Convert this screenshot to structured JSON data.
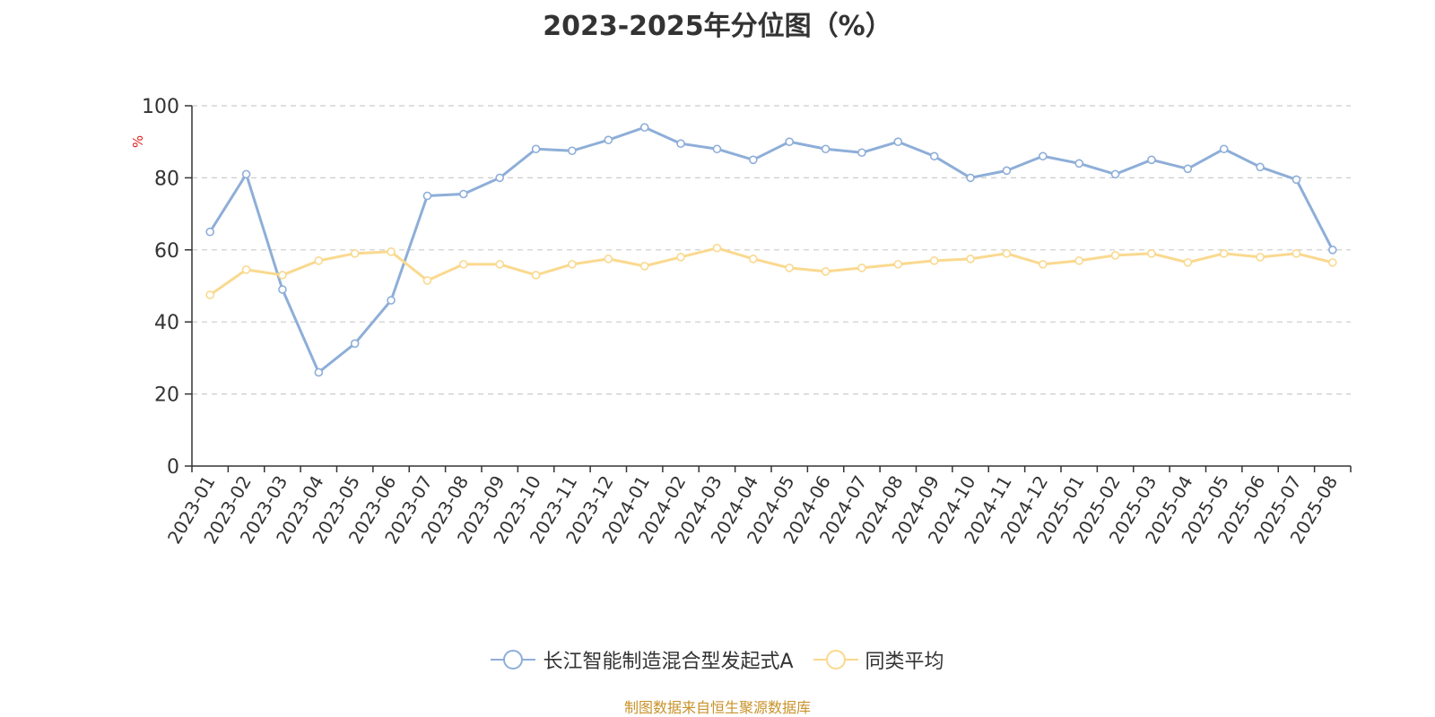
{
  "colors": {
    "fund": "#8eaed8",
    "average": "#fad98f",
    "ylabel": "#e02020",
    "source": "#c8922a",
    "axis": "#333333",
    "grid": "#cccccc"
  },
  "chart_data": {
    "type": "line",
    "title": "2023-2025年分位图（%）",
    "xlabel": "",
    "ylabel": "%",
    "ylim": [
      0,
      100
    ],
    "yticks": [
      0,
      20,
      40,
      60,
      80,
      100
    ],
    "grid": "horizontal dashed",
    "legend_position": "bottom",
    "categories": [
      "2023-01",
      "2023-02",
      "2023-03",
      "2023-04",
      "2023-05",
      "2023-06",
      "2023-07",
      "2023-08",
      "2023-09",
      "2023-10",
      "2023-11",
      "2023-12",
      "2024-01",
      "2024-02",
      "2024-03",
      "2024-04",
      "2024-05",
      "2024-06",
      "2024-07",
      "2024-08",
      "2024-09",
      "2024-10",
      "2024-11",
      "2024-12",
      "2025-01",
      "2025-02",
      "2025-03",
      "2025-04",
      "2025-05",
      "2025-06",
      "2025-07",
      "2025-08"
    ],
    "series": [
      {
        "name": "长江智能制造混合型发起式A",
        "values": [
          65,
          81,
          49,
          26,
          34,
          46,
          75,
          75.5,
          80,
          88,
          87.5,
          90.5,
          94,
          89.5,
          88,
          85,
          90,
          88,
          87,
          90,
          86,
          80,
          82,
          86,
          84,
          81,
          85,
          82.5,
          88,
          83,
          79.5,
          60
        ]
      },
      {
        "name": "同类平均",
        "values": [
          47.5,
          54.5,
          53,
          57,
          59,
          59.5,
          51.5,
          56,
          56,
          53,
          56,
          57.5,
          55.5,
          58,
          60.5,
          57.5,
          55,
          54,
          55,
          56,
          57,
          57.5,
          59,
          56,
          57,
          58.5,
          59,
          56.5,
          59,
          58,
          59,
          56.5
        ]
      }
    ]
  },
  "footer": {
    "source": "制图数据来自恒生聚源数据库"
  }
}
